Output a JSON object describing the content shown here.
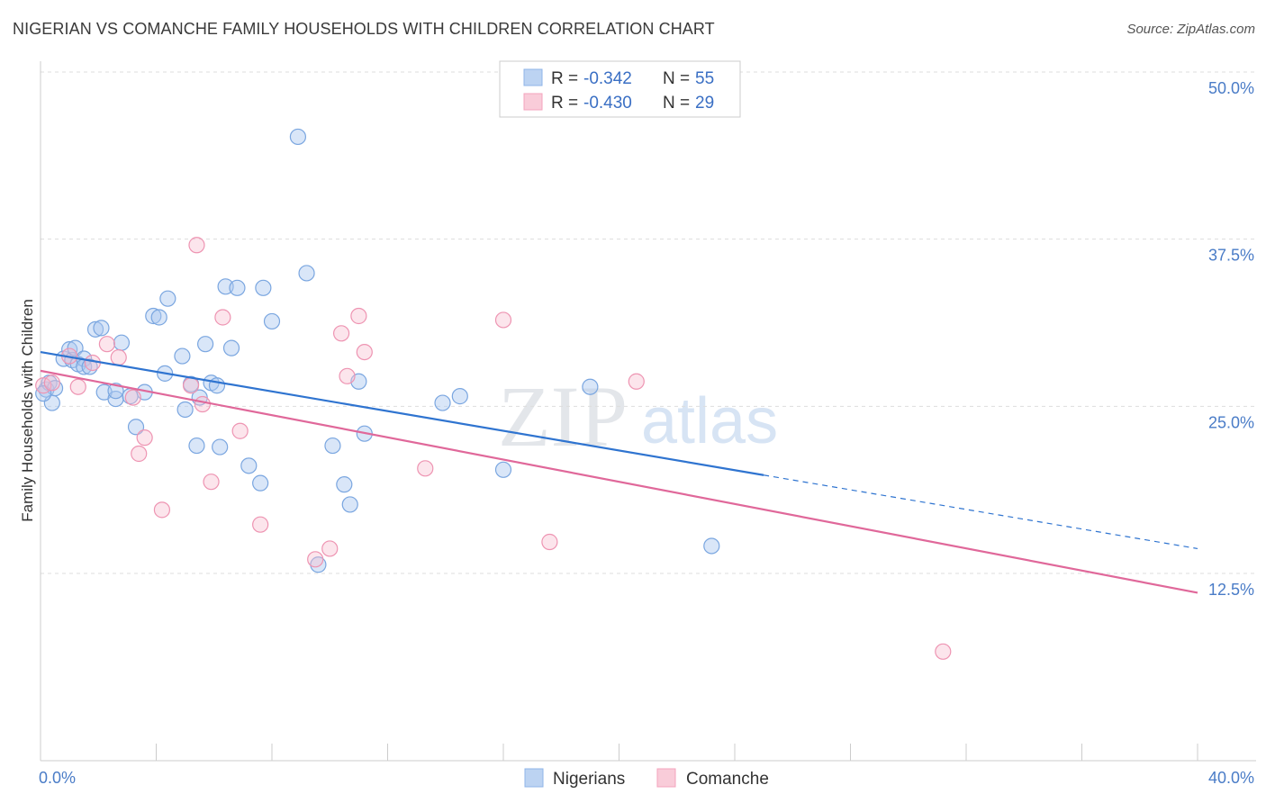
{
  "header": {
    "title": "NIGERIAN VS COMANCHE FAMILY HOUSEHOLDS WITH CHILDREN CORRELATION CHART",
    "source": "Source: ZipAtlas.com"
  },
  "legend": {
    "rows": [
      {
        "r_label": "R =",
        "r_value": "-0.342",
        "n_label": "N =",
        "n_value": "55"
      },
      {
        "r_label": "R =",
        "r_value": "-0.430",
        "n_label": "N =",
        "n_value": "29"
      }
    ],
    "bottom": [
      "Nigerians",
      "Comanche"
    ]
  },
  "watermark": {
    "zip": "ZIP",
    "atlas": "atlas"
  },
  "chart_data": {
    "type": "scatter",
    "ylabel": "Family Households with Children",
    "x_ticks": [
      "0.0%",
      "40.0%"
    ],
    "y_ticks": [
      "50.0%",
      "37.5%",
      "25.0%",
      "12.5%"
    ],
    "xlim": [
      0,
      40
    ],
    "ylim": [
      0,
      52
    ],
    "grid": true,
    "colors": {
      "nigerians": "#8fb4e8",
      "comanche": "#f4a3bd",
      "nigerians_line": "#2f74d0",
      "comanche_line": "#e0689a"
    },
    "series": [
      {
        "name": "Nigerians",
        "points": [
          [
            0.2,
            27.4
          ],
          [
            0.3,
            27.9
          ],
          [
            0.4,
            26.4
          ],
          [
            0.5,
            27.5
          ],
          [
            0.8,
            29.7
          ],
          [
            1.0,
            30.4
          ],
          [
            1.1,
            29.6
          ],
          [
            1.2,
            30.5
          ],
          [
            1.3,
            29.3
          ],
          [
            1.5,
            29.7
          ],
          [
            1.5,
            29.1
          ],
          [
            1.9,
            31.9
          ],
          [
            2.1,
            32.0
          ],
          [
            2.2,
            27.2
          ],
          [
            2.6,
            26.7
          ],
          [
            2.6,
            27.3
          ],
          [
            2.8,
            30.9
          ],
          [
            3.1,
            26.9
          ],
          [
            3.3,
            24.6
          ],
          [
            3.6,
            27.2
          ],
          [
            3.9,
            32.9
          ],
          [
            4.1,
            32.8
          ],
          [
            4.3,
            28.6
          ],
          [
            4.4,
            34.2
          ],
          [
            4.9,
            29.9
          ],
          [
            5.0,
            25.9
          ],
          [
            5.2,
            27.8
          ],
          [
            5.4,
            23.2
          ],
          [
            5.5,
            26.8
          ],
          [
            5.7,
            30.8
          ],
          [
            5.9,
            27.9
          ],
          [
            6.1,
            27.7
          ],
          [
            6.2,
            23.1
          ],
          [
            6.4,
            35.1
          ],
          [
            6.6,
            30.5
          ],
          [
            6.8,
            35.0
          ],
          [
            7.2,
            21.7
          ],
          [
            7.6,
            20.4
          ],
          [
            7.7,
            35.0
          ],
          [
            8.0,
            32.5
          ],
          [
            8.9,
            46.3
          ],
          [
            9.2,
            36.1
          ],
          [
            9.6,
            14.3
          ],
          [
            10.1,
            23.2
          ],
          [
            10.5,
            20.3
          ],
          [
            10.7,
            18.8
          ],
          [
            11.0,
            28.0
          ],
          [
            11.2,
            24.1
          ],
          [
            13.9,
            26.4
          ],
          [
            14.5,
            26.9
          ],
          [
            16.0,
            21.4
          ],
          [
            19.0,
            27.6
          ],
          [
            23.2,
            15.7
          ],
          [
            0.1,
            27.1
          ],
          [
            1.7,
            29.1
          ]
        ]
      },
      {
        "name": "Comanche",
        "points": [
          [
            0.1,
            27.7
          ],
          [
            0.4,
            27.9
          ],
          [
            1.0,
            29.9
          ],
          [
            1.3,
            27.6
          ],
          [
            1.8,
            29.4
          ],
          [
            2.3,
            30.8
          ],
          [
            2.7,
            29.8
          ],
          [
            3.2,
            26.8
          ],
          [
            3.4,
            22.6
          ],
          [
            3.6,
            23.8
          ],
          [
            4.2,
            18.4
          ],
          [
            5.2,
            27.7
          ],
          [
            5.4,
            38.2
          ],
          [
            5.6,
            26.3
          ],
          [
            5.9,
            20.5
          ],
          [
            6.3,
            32.8
          ],
          [
            6.9,
            24.3
          ],
          [
            7.6,
            17.3
          ],
          [
            9.5,
            14.7
          ],
          [
            10.0,
            15.5
          ],
          [
            10.4,
            31.6
          ],
          [
            10.6,
            28.4
          ],
          [
            11.0,
            32.9
          ],
          [
            11.2,
            30.2
          ],
          [
            13.3,
            21.5
          ],
          [
            16.0,
            32.6
          ],
          [
            17.6,
            16.0
          ],
          [
            20.6,
            28.0
          ],
          [
            31.2,
            7.8
          ]
        ]
      }
    ],
    "trend_lines": [
      {
        "series": "Nigerians",
        "x": [
          0,
          25
        ],
        "y": [
          30.2,
          21.0
        ],
        "dashed_to": [
          40,
          15.5
        ]
      },
      {
        "series": "Comanche",
        "x": [
          0,
          40
        ],
        "y": [
          28.8,
          12.2
        ]
      }
    ]
  }
}
